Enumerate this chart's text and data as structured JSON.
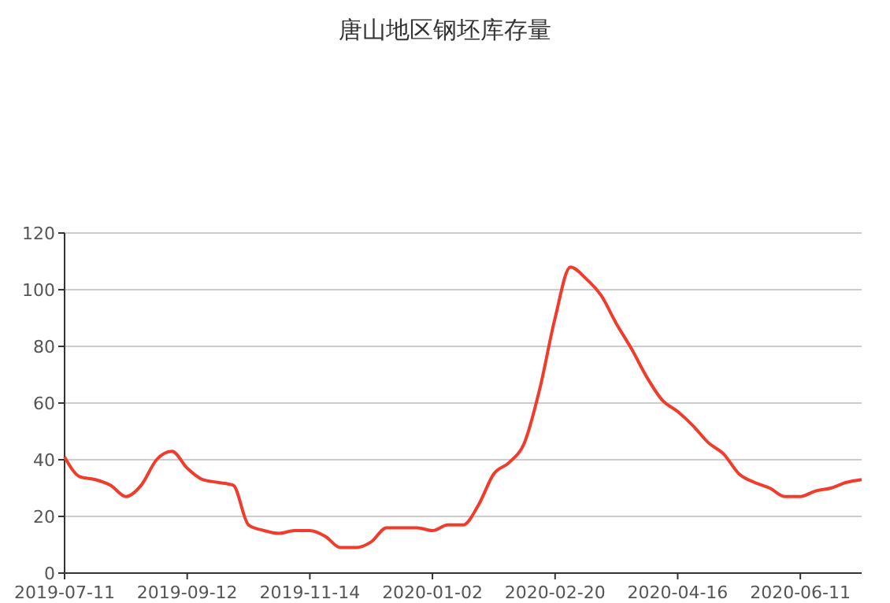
{
  "chart_data": {
    "type": "line",
    "title": "唐山地区钢坯库存量",
    "categories": [
      "2019-07-11",
      null,
      null,
      null,
      null,
      null,
      null,
      null,
      "2019-09-12",
      null,
      null,
      null,
      null,
      null,
      null,
      null,
      "2019-11-14",
      null,
      null,
      null,
      null,
      null,
      null,
      null,
      "2020-01-02",
      null,
      null,
      null,
      null,
      null,
      null,
      null,
      "2020-02-20",
      null,
      null,
      null,
      null,
      null,
      null,
      null,
      "2020-04-16",
      null,
      null,
      null,
      null,
      null,
      null,
      null,
      "2020-06-11",
      null,
      null,
      null,
      null
    ],
    "series": [
      {
        "color": "#f03c2c",
        "values": [
          41,
          34,
          33,
          31,
          27,
          31,
          40,
          43,
          37,
          33,
          32,
          31,
          17,
          15,
          14,
          15,
          15,
          13,
          9,
          9,
          11,
          16,
          16,
          16,
          15,
          17,
          17,
          24,
          35,
          39,
          46,
          65,
          90,
          108,
          104,
          98,
          88,
          79,
          69,
          61,
          57,
          52,
          46,
          42,
          35,
          32,
          30,
          27,
          27,
          29,
          30,
          32,
          33
        ]
      }
    ],
    "ylim": [
      0,
      120
    ],
    "yticks": [
      0,
      20,
      40,
      60,
      80,
      100,
      120
    ],
    "grid": "y"
  }
}
